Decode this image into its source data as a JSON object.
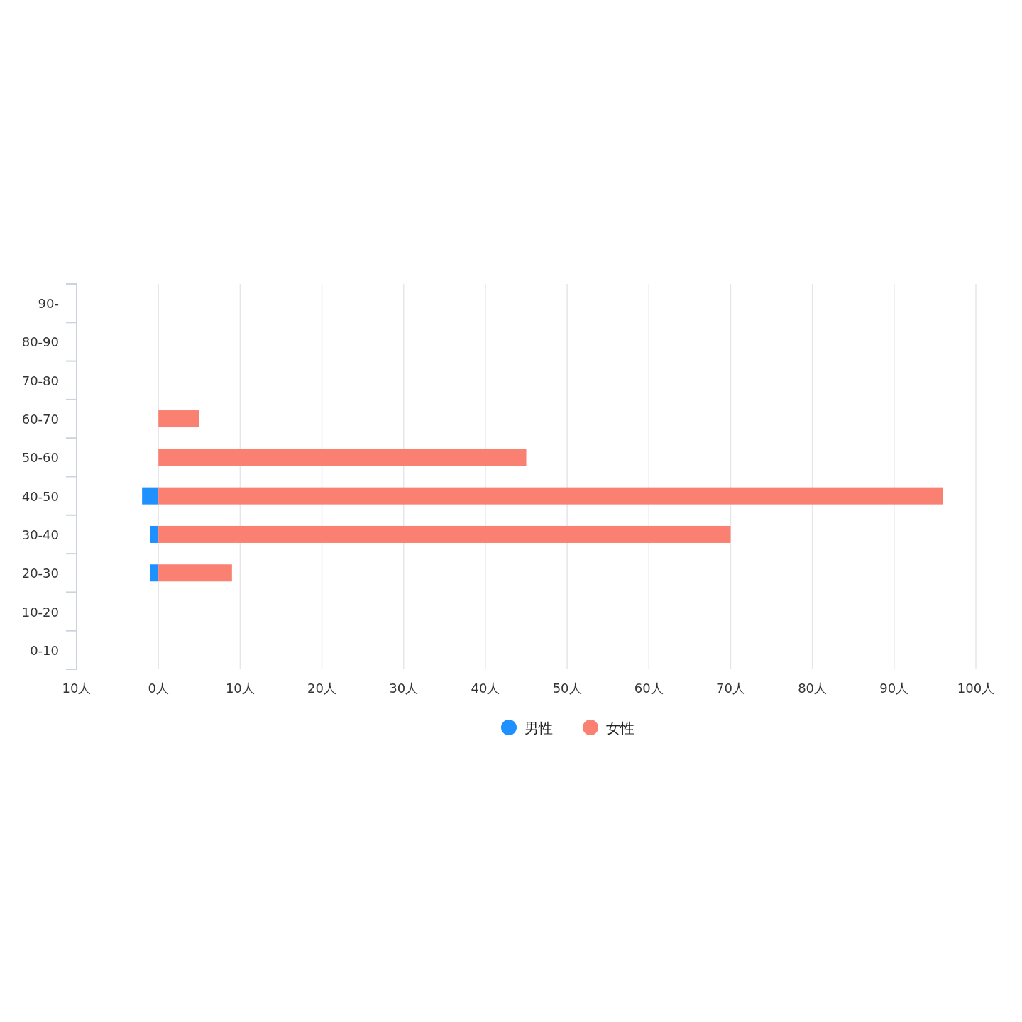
{
  "chart_data": {
    "type": "bar",
    "orientation": "horizontal",
    "stacked": true,
    "categories": [
      "90-",
      "80-90",
      "70-80",
      "60-70",
      "50-60",
      "40-50",
      "30-40",
      "20-30",
      "10-20",
      "0-10"
    ],
    "series": [
      {
        "name": "男性",
        "color": "#1e90ff",
        "values": [
          null,
          null,
          null,
          null,
          null,
          -2,
          -1,
          -1,
          null,
          null
        ]
      },
      {
        "name": "女性",
        "color": "#fa8072",
        "values": [
          null,
          null,
          null,
          5,
          45,
          96,
          70,
          9,
          null,
          null
        ]
      }
    ],
    "xlim": [
      -10,
      100
    ],
    "xticks": [
      {
        "value": -10,
        "label": "10人"
      },
      {
        "value": 0,
        "label": "0人"
      },
      {
        "value": 10,
        "label": "10人"
      },
      {
        "value": 20,
        "label": "20人"
      },
      {
        "value": 30,
        "label": "30人"
      },
      {
        "value": 40,
        "label": "40人"
      },
      {
        "value": 50,
        "label": "50人"
      },
      {
        "value": 60,
        "label": "60人"
      },
      {
        "value": 70,
        "label": "70人"
      },
      {
        "value": 80,
        "label": "80人"
      },
      {
        "value": 90,
        "label": "90人"
      },
      {
        "value": 100,
        "label": "100人"
      }
    ],
    "grid": "x",
    "legend": "bottom"
  }
}
